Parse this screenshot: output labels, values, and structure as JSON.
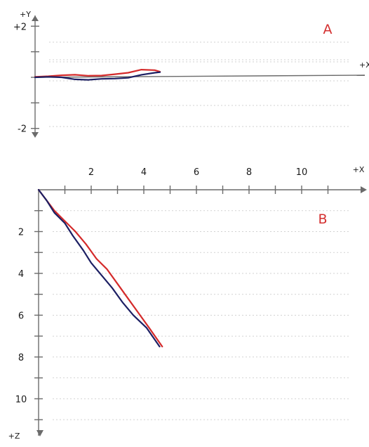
{
  "colors": {
    "axis": "#6b6b6b",
    "grid": "#d2d2d2",
    "text": "#1a1a1a",
    "label": "#d43030",
    "red": "#d42a2a",
    "navy": "#1c1f63"
  },
  "chart_data": [
    {
      "type": "line",
      "panel_label": "A",
      "x_axis": {
        "label": "+X",
        "xlim": [
          0,
          12.4
        ]
      },
      "y_axis": {
        "label": "+Y",
        "ylim": [
          -2.2,
          2.2
        ],
        "ticks": [
          2,
          1,
          0,
          -1,
          -2
        ],
        "tick_labels": [
          "+2",
          "",
          "",
          "",
          "-2"
        ]
      },
      "grid": true,
      "series": [
        {
          "color": "red",
          "x": [
            0,
            0.5,
            1.0,
            1.5,
            2.0,
            2.5,
            3.0,
            3.5,
            4.0,
            4.5,
            4.7
          ],
          "y": [
            0.02,
            0.04,
            0.08,
            0.1,
            0.06,
            0.07,
            0.12,
            0.18,
            0.3,
            0.28,
            0.22
          ]
        },
        {
          "color": "navy",
          "x": [
            0,
            0.5,
            1.0,
            1.5,
            2.0,
            2.5,
            3.0,
            3.5,
            4.0,
            4.5,
            4.7
          ],
          "y": [
            0.0,
            0.02,
            0.0,
            -0.08,
            -0.1,
            -0.06,
            -0.05,
            -0.02,
            0.1,
            0.18,
            0.2
          ]
        }
      ]
    },
    {
      "type": "line",
      "panel_label": "B",
      "x_axis": {
        "label": "+X",
        "xlim": [
          0,
          12.4
        ],
        "ticks": [
          1,
          2,
          3,
          4,
          5,
          6,
          7,
          8,
          9,
          10,
          11
        ],
        "tick_labels": [
          "",
          "2",
          "",
          "4",
          "",
          "6",
          "",
          "8",
          "",
          "10",
          ""
        ]
      },
      "z_axis": {
        "label": "+Z",
        "zlim": [
          0,
          11.6
        ],
        "ticks": [
          1,
          2,
          3,
          4,
          5,
          6,
          7,
          8,
          9,
          10,
          11
        ],
        "tick_labels": [
          "",
          "2",
          "",
          "4",
          "",
          "6",
          "",
          "8",
          "",
          "10",
          ""
        ]
      },
      "grid": true,
      "series": [
        {
          "color": "red",
          "x": [
            0,
            0.3,
            0.6,
            1.0,
            1.4,
            1.8,
            2.2,
            2.6,
            3.0,
            3.4,
            3.8,
            4.2,
            4.7
          ],
          "z": [
            0,
            0.5,
            1.0,
            1.5,
            2.0,
            2.6,
            3.3,
            3.8,
            4.5,
            5.2,
            5.9,
            6.6,
            7.5
          ]
        },
        {
          "color": "navy",
          "x": [
            0,
            0.3,
            0.6,
            1.0,
            1.3,
            1.7,
            2.0,
            2.4,
            2.8,
            3.2,
            3.6,
            4.1,
            4.6
          ],
          "z": [
            0,
            0.5,
            1.1,
            1.6,
            2.2,
            2.9,
            3.5,
            4.1,
            4.7,
            5.4,
            6.0,
            6.6,
            7.5
          ]
        }
      ]
    }
  ]
}
